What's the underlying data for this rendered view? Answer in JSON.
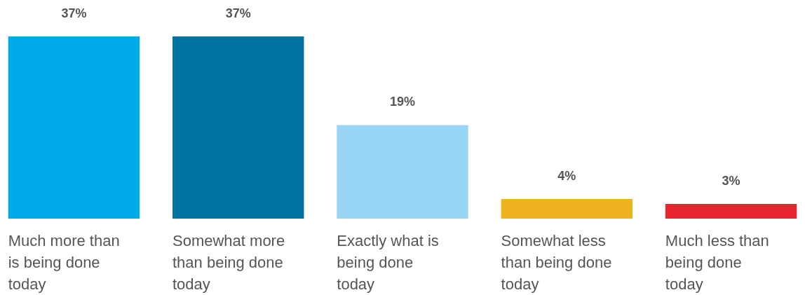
{
  "chart_data": {
    "type": "bar",
    "categories": [
      "Much more than is being done today",
      "Somewhat more than being done today",
      "Exactly what is being done today",
      "Somewhat less than being done today",
      "Much less than being done today"
    ],
    "values": [
      37,
      37,
      19,
      4,
      3
    ],
    "colors": [
      "#00a9e8",
      "#0072a0",
      "#99d6f5",
      "#f0b320",
      "#e8262f"
    ],
    "value_labels": [
      "37%",
      "37%",
      "19%",
      "4%",
      "3%"
    ]
  }
}
